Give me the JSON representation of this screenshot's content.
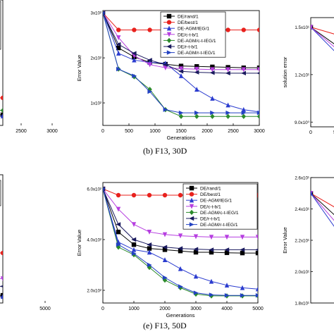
{
  "captions": {
    "middle": "(b) F13, 30D",
    "bottom": "(e) F13, 50D"
  },
  "legend_labels": [
    "DE/rand/1",
    "DE/best/1",
    "DE-AGM/IEG/1",
    "DE/c-t-b/1",
    "DE-AGM/c-t-IEG/1",
    "DE/r-t-b/1",
    "DE-AGM/r-t-IEG/1"
  ],
  "colors": {
    "DE/rand/1": "#000000",
    "DE/best/1": "#e8211d",
    "DE-AGM/IEG/1": "#2b3ccf",
    "DE/c-t-b/1": "#b63ee0",
    "DE-AGM/c-t-IEG/1": "#2b8a2b",
    "DE/r-t-b/1": "#1a1a5e",
    "DE-AGM/r-t-IEG/1": "#2342c2"
  },
  "chart_data": [
    {
      "panel": "left-top (cropped)",
      "type": "line",
      "xlabel": "",
      "ylabel": "",
      "xlim": [
        1500,
        3000
      ],
      "xticks": [
        "000",
        "2500",
        "3000"
      ],
      "ylim": [
        0,
        10
      ],
      "series": [
        {
          "name": "DE/best/1",
          "x": [
            1500,
            3000
          ],
          "y": [
            2.2,
            2.2
          ]
        },
        {
          "name": "DE-AGM/c-t-IEG/1",
          "x": [
            1500,
            3000
          ],
          "y": [
            1.2,
            1.2
          ]
        },
        {
          "name": "DE/rand/1",
          "x": [
            1500,
            3000
          ],
          "y": [
            0.85,
            0.85
          ]
        },
        {
          "name": "DE-AGM/IEG/1",
          "x": [
            1500,
            3000
          ],
          "y": [
            0.75,
            0.75
          ]
        }
      ]
    },
    {
      "panel": "middle-top",
      "type": "line",
      "xlabel": "Generations",
      "ylabel": "Error Value",
      "xlim": [
        0,
        3000
      ],
      "xticks": [
        "0",
        "500",
        "1000",
        "1500",
        "2000",
        "2500",
        "3000"
      ],
      "ylim": [
        0.5,
        3.05
      ],
      "yticks": [
        {
          "v": 1,
          "label": "1x10²"
        },
        {
          "v": 2,
          "label": "2x10²"
        },
        {
          "v": 3,
          "label": "3x10²"
        }
      ],
      "legend_position": "top-right",
      "series": [
        {
          "name": "DE/rand/1",
          "x": [
            0,
            300,
            600,
            900,
            1200,
            1500,
            1800,
            2100,
            2400,
            2700,
            3000
          ],
          "y": [
            3.0,
            2.22,
            2.02,
            1.9,
            1.86,
            1.82,
            1.81,
            1.8,
            1.79,
            1.78,
            1.78
          ]
        },
        {
          "name": "DE/best/1",
          "x": [
            0,
            300,
            600,
            900,
            1200,
            1500,
            1800,
            2100,
            2400,
            2700,
            3000
          ],
          "y": [
            3.0,
            2.62,
            2.62,
            2.62,
            2.62,
            2.62,
            2.62,
            2.62,
            2.62,
            2.62,
            2.62
          ]
        },
        {
          "name": "DE-AGM/IEG/1",
          "x": [
            0,
            300,
            600,
            900,
            1200,
            1500,
            1800,
            2100,
            2400,
            2700,
            3000
          ],
          "y": [
            3.0,
            2.1,
            1.95,
            1.9,
            1.88,
            1.6,
            1.3,
            1.1,
            0.95,
            0.85,
            0.8
          ]
        },
        {
          "name": "DE/c-t-b/1",
          "x": [
            0,
            300,
            600,
            900,
            1200,
            1500,
            1800,
            2100,
            2400,
            2700,
            3000
          ],
          "y": [
            3.0,
            2.45,
            2.05,
            1.85,
            1.78,
            1.76,
            1.75,
            1.74,
            1.74,
            1.74,
            1.74
          ]
        },
        {
          "name": "DE-AGM/c-t-IEG/1",
          "x": [
            0,
            300,
            600,
            900,
            1200,
            1500,
            1800,
            2100,
            2400,
            2700,
            3000
          ],
          "y": [
            3.0,
            1.75,
            1.58,
            1.3,
            0.85,
            0.7,
            0.7,
            0.7,
            0.7,
            0.7,
            0.7
          ]
        },
        {
          "name": "DE/r-t-b/1",
          "x": [
            0,
            300,
            600,
            900,
            1200,
            1500,
            1800,
            2100,
            2400,
            2700,
            3000
          ],
          "y": [
            3.0,
            2.3,
            2.1,
            1.95,
            1.85,
            1.7,
            1.68,
            1.67,
            1.66,
            1.66,
            1.66
          ]
        },
        {
          "name": "DE-AGM/r-t-IEG/1",
          "x": [
            0,
            300,
            600,
            900,
            1200,
            1500,
            1800,
            2100,
            2400,
            2700,
            3000
          ],
          "y": [
            3.0,
            1.75,
            1.6,
            1.25,
            0.85,
            0.78,
            0.78,
            0.78,
            0.78,
            0.78,
            0.78
          ]
        }
      ]
    },
    {
      "panel": "right-top (cropped)",
      "type": "line",
      "xlabel": "",
      "ylabel": "solution error",
      "xlim": [
        0,
        5
      ],
      "xticks": [
        "0",
        "5"
      ],
      "ylim": [
        8.7,
        15.6
      ],
      "yticks": [
        {
          "v": 9,
          "label": "9.0x10⁰"
        },
        {
          "v": 12,
          "label": "1.2x10¹"
        },
        {
          "v": 15,
          "label": "1.5x10¹"
        }
      ],
      "series": [
        {
          "name": "DE/best/1",
          "x": [
            0,
            3,
            5
          ],
          "y": [
            15.0,
            14.3,
            14.2
          ]
        },
        {
          "name": "DE/rand/1",
          "x": [
            0,
            3,
            5
          ],
          "y": [
            15.0,
            13.3,
            13.0
          ]
        },
        {
          "name": "DE-AGM/IEG/1",
          "x": [
            0,
            3,
            5
          ],
          "y": [
            15.0,
            12.6,
            12.4
          ]
        },
        {
          "name": "DE/c-t-b/1",
          "x": [
            0,
            3,
            5
          ],
          "y": [
            15.0,
            13.0,
            12.8
          ]
        }
      ]
    },
    {
      "panel": "left-bottom (cropped)",
      "type": "line",
      "xlabel": "",
      "ylabel": "",
      "xlim": [
        3000,
        5000
      ],
      "xticks": [
        "4000",
        "5000"
      ],
      "ylim": [
        0,
        10
      ],
      "series": [
        {
          "name": "DE/best/1",
          "x": [
            3000,
            5000
          ],
          "y": [
            3.9,
            3.9
          ]
        },
        {
          "name": "DE/c-t-b/1",
          "x": [
            3000,
            5000
          ],
          "y": [
            1.9,
            1.9
          ]
        },
        {
          "name": "DE/r-t-b/1",
          "x": [
            3000,
            5000
          ],
          "y": [
            1.3,
            1.3
          ]
        },
        {
          "name": "DE/rand/1",
          "x": [
            3000,
            5000
          ],
          "y": [
            0.6,
            0.6
          ]
        },
        {
          "name": "DE-AGM/IEG/1",
          "x": [
            3000,
            5000
          ],
          "y": [
            0.5,
            0.5
          ]
        }
      ]
    },
    {
      "panel": "middle-bottom",
      "type": "line",
      "xlabel": "Generations",
      "ylabel": "Error Value",
      "xlim": [
        0,
        5000
      ],
      "xticks": [
        "0",
        "1000",
        "2000",
        "3000",
        "4000",
        "5000"
      ],
      "ylim": [
        1.5,
        6.25
      ],
      "yticks": [
        {
          "v": 2,
          "label": "2.0x10²"
        },
        {
          "v": 4,
          "label": "4.0x10²"
        },
        {
          "v": 6,
          "label": "6.0x10²"
        }
      ],
      "legend_position": "top-right",
      "series": [
        {
          "name": "DE/rand/1",
          "x": [
            0,
            500,
            1000,
            1500,
            2000,
            2500,
            3000,
            3500,
            4000,
            4500,
            5000
          ],
          "y": [
            6.0,
            4.3,
            3.8,
            3.65,
            3.6,
            3.55,
            3.5,
            3.5,
            3.48,
            3.47,
            3.47
          ]
        },
        {
          "name": "DE/best/1",
          "x": [
            0,
            500,
            1000,
            1500,
            2000,
            2500,
            3000,
            3500,
            4000,
            4500,
            5000
          ],
          "y": [
            6.0,
            5.75,
            5.75,
            5.75,
            5.75,
            5.75,
            5.75,
            5.75,
            5.75,
            5.75,
            5.75
          ]
        },
        {
          "name": "DE-AGM/IEG/1",
          "x": [
            0,
            500,
            1000,
            1500,
            2000,
            2500,
            3000,
            3500,
            4000,
            4500,
            5000
          ],
          "y": [
            6.0,
            3.9,
            3.6,
            3.5,
            3.2,
            2.85,
            2.55,
            2.35,
            2.2,
            2.1,
            2.05
          ]
        },
        {
          "name": "DE/c-t-b/1",
          "x": [
            0,
            500,
            1000,
            1500,
            2000,
            2500,
            3000,
            3500,
            4000,
            4500,
            5000
          ],
          "y": [
            6.0,
            5.2,
            4.6,
            4.3,
            4.2,
            4.15,
            4.12,
            4.1,
            4.1,
            4.1,
            4.1
          ]
        },
        {
          "name": "DE-AGM/c-t-IEG/1",
          "x": [
            0,
            500,
            1000,
            1500,
            2000,
            2500,
            3000,
            3500,
            4000,
            4500,
            5000
          ],
          "y": [
            6.0,
            3.7,
            3.4,
            2.9,
            2.4,
            2.1,
            1.85,
            1.78,
            1.78,
            1.78,
            1.78
          ]
        },
        {
          "name": "DE/r-t-b/1",
          "x": [
            0,
            500,
            1000,
            1500,
            2000,
            2500,
            3000,
            3500,
            4000,
            4500,
            5000
          ],
          "y": [
            6.0,
            4.6,
            4.0,
            3.8,
            3.7,
            3.65,
            3.62,
            3.6,
            3.6,
            3.6,
            3.6
          ]
        },
        {
          "name": "DE-AGM/r-t-IEG/1",
          "x": [
            0,
            500,
            1000,
            1500,
            2000,
            2500,
            3000,
            3500,
            4000,
            4500,
            5000
          ],
          "y": [
            6.0,
            3.8,
            3.45,
            3.0,
            2.5,
            2.15,
            1.9,
            1.82,
            1.8,
            1.8,
            1.8
          ]
        }
      ]
    },
    {
      "panel": "right-bottom (cropped)",
      "type": "line",
      "xlabel": "",
      "ylabel": "Error Value",
      "xlim": [
        0,
        5
      ],
      "ylim": [
        1.8,
        2.6
      ],
      "yticks": [
        {
          "v": 1.8,
          "label": "1.8x10¹"
        },
        {
          "v": 2.0,
          "label": "2.0x10¹"
        },
        {
          "v": 2.2,
          "label": "2.2x10¹"
        },
        {
          "v": 2.4,
          "label": "2.4x10¹"
        },
        {
          "v": 2.6,
          "label": "2.6x10¹"
        }
      ],
      "series": [
        {
          "name": "DE/best/1",
          "x": [
            0,
            3,
            5
          ],
          "y": [
            2.5,
            2.36,
            2.34
          ]
        },
        {
          "name": "DE/rand/1",
          "x": [
            0,
            3,
            5
          ],
          "y": [
            2.5,
            2.28,
            2.25
          ]
        },
        {
          "name": "DE/c-t-b/1",
          "x": [
            0,
            3,
            5
          ],
          "y": [
            2.5,
            2.22,
            2.2
          ]
        },
        {
          "name": "DE-AGM/IEG/1",
          "x": [
            0,
            3,
            5
          ],
          "y": [
            2.5,
            2.16,
            2.12
          ]
        }
      ]
    }
  ]
}
